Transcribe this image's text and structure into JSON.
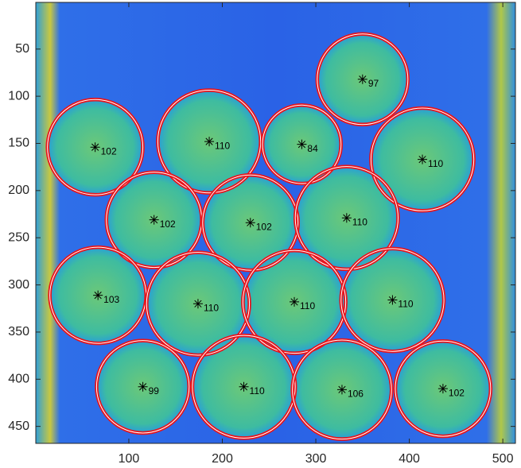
{
  "chart_data": {
    "type": "circles",
    "x": [
      350,
      64,
      186,
      285,
      414,
      127,
      230,
      333,
      67,
      174,
      277,
      382,
      115,
      223,
      328,
      436
    ],
    "y": [
      82,
      154,
      148,
      151,
      167,
      231,
      234,
      229,
      311,
      320,
      318,
      316,
      408,
      408,
      411,
      410
    ],
    "values": [
      97,
      102,
      110,
      84,
      110,
      102,
      102,
      110,
      103,
      110,
      110,
      110,
      99,
      110,
      106,
      102
    ],
    "color": "#e8141c",
    "xlim": [
      0.5,
      513.5
    ],
    "ylim": [
      0.5,
      468
    ],
    "y_reversed": true,
    "xticks": [
      100,
      200,
      300,
      400,
      500
    ],
    "yticks": [
      50,
      100,
      150,
      200,
      250,
      300,
      350,
      400,
      450
    ]
  }
}
